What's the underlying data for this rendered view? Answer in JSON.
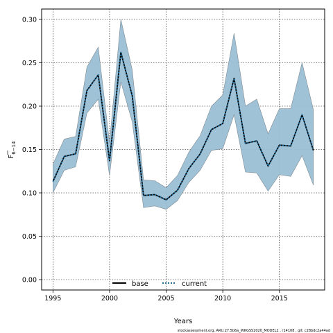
{
  "chart_data": {
    "type": "line",
    "xlabel": "Years",
    "ylabel_main": "F",
    "ylabel_sub": "6−14",
    "xlim": [
      1994,
      2019
    ],
    "ylim": [
      -0.012,
      0.312
    ],
    "x_ticks": [
      1995,
      2000,
      2005,
      2010,
      2015
    ],
    "y_ticks": [
      0.0,
      0.05,
      0.1,
      0.15,
      0.2,
      0.25,
      0.3
    ],
    "y_tick_labels": [
      "0.00",
      "0.05",
      "0.10",
      "0.15",
      "0.20",
      "0.25",
      "0.30"
    ],
    "grid": true,
    "legend_position": "bottom",
    "x": [
      1995,
      1996,
      1997,
      1998,
      1999,
      2000,
      2001,
      2002,
      2003,
      2004,
      2005,
      2006,
      2007,
      2008,
      2009,
      2010,
      2011,
      2012,
      2013,
      2014,
      2015,
      2016,
      2017,
      2018
    ],
    "series": [
      {
        "name": "base",
        "line_style": "solid",
        "color": "#000000",
        "values": [
          0.113,
          0.142,
          0.145,
          0.218,
          0.236,
          0.137,
          0.262,
          0.212,
          0.097,
          0.098,
          0.092,
          0.103,
          0.128,
          0.145,
          0.173,
          0.18,
          0.232,
          0.157,
          0.16,
          0.131,
          0.155,
          0.154,
          0.19,
          0.149
        ]
      },
      {
        "name": "current",
        "line_style": "dotted",
        "color": "#1f6f9f",
        "values": [
          0.113,
          0.142,
          0.145,
          0.218,
          0.236,
          0.137,
          0.262,
          0.212,
          0.097,
          0.098,
          0.092,
          0.103,
          0.128,
          0.145,
          0.173,
          0.18,
          0.232,
          0.157,
          0.16,
          0.131,
          0.155,
          0.154,
          0.19,
          0.149
        ]
      }
    ],
    "band": {
      "color": "#9bbfd4",
      "upper": [
        0.133,
        0.162,
        0.165,
        0.245,
        0.268,
        0.158,
        0.3,
        0.242,
        0.115,
        0.114,
        0.106,
        0.12,
        0.147,
        0.166,
        0.2,
        0.213,
        0.284,
        0.2,
        0.208,
        0.168,
        0.197,
        0.197,
        0.25,
        0.196
      ],
      "lower": [
        0.1,
        0.126,
        0.13,
        0.192,
        0.208,
        0.12,
        0.228,
        0.182,
        0.083,
        0.085,
        0.081,
        0.091,
        0.112,
        0.126,
        0.149,
        0.151,
        0.19,
        0.124,
        0.123,
        0.102,
        0.121,
        0.119,
        0.143,
        0.109
      ]
    },
    "footer": "stockassessment.org,  ARU.27.5b6a_WKGSS2020_MODEL2 ,  r14108 ,  git:  c28bdc2a44ad"
  }
}
